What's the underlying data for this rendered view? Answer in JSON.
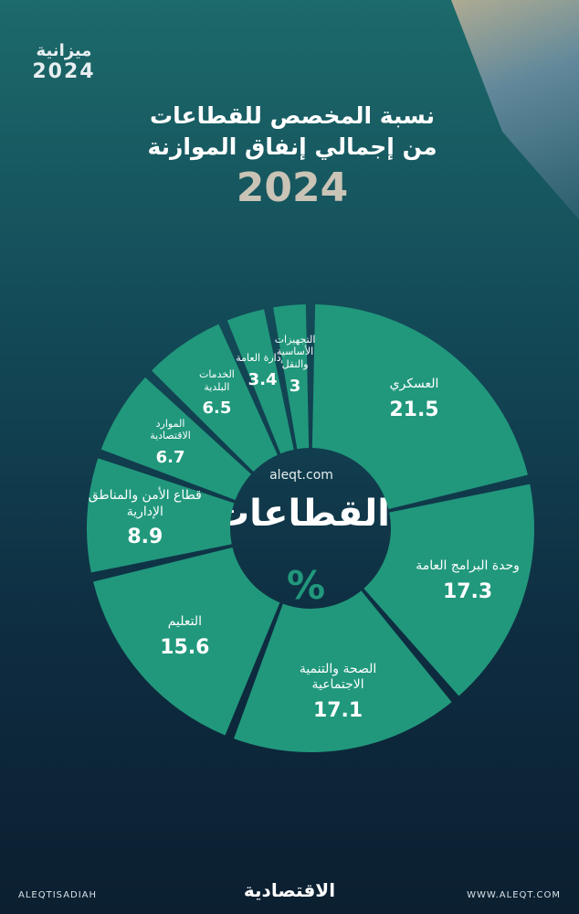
{
  "header": {
    "logo_title": "ميزانية",
    "logo_year": "2024",
    "title_line1": "نسبة المخصص للقطاعات",
    "title_line2": "من إجمالي إنفاق الموازنة",
    "year": "2024"
  },
  "chart_data": {
    "type": "donut",
    "center_site": "aleqt.com",
    "center_title": "القطاعات",
    "center_unit": "%",
    "categories": [
      "العسكري",
      "وحدة البرامج العامة",
      "الصحة والتنمية الاجتماعية",
      "التعليم",
      "قطاع الأمن والمناطق الإدارية",
      "الموارد الاقتصادية",
      "الخدمات البلدية",
      "الإدارة العامة",
      "التجهيزات الأساسية والنقل"
    ],
    "values": [
      21.5,
      17.3,
      17.1,
      15.6,
      8.9,
      6.7,
      6.5,
      3.4,
      3.0
    ],
    "color": "#21987c"
  },
  "footer": {
    "social": "ALEQTISADIAH",
    "brand": "الاقتصادية",
    "site": "WWW.ALEQT.COM"
  }
}
